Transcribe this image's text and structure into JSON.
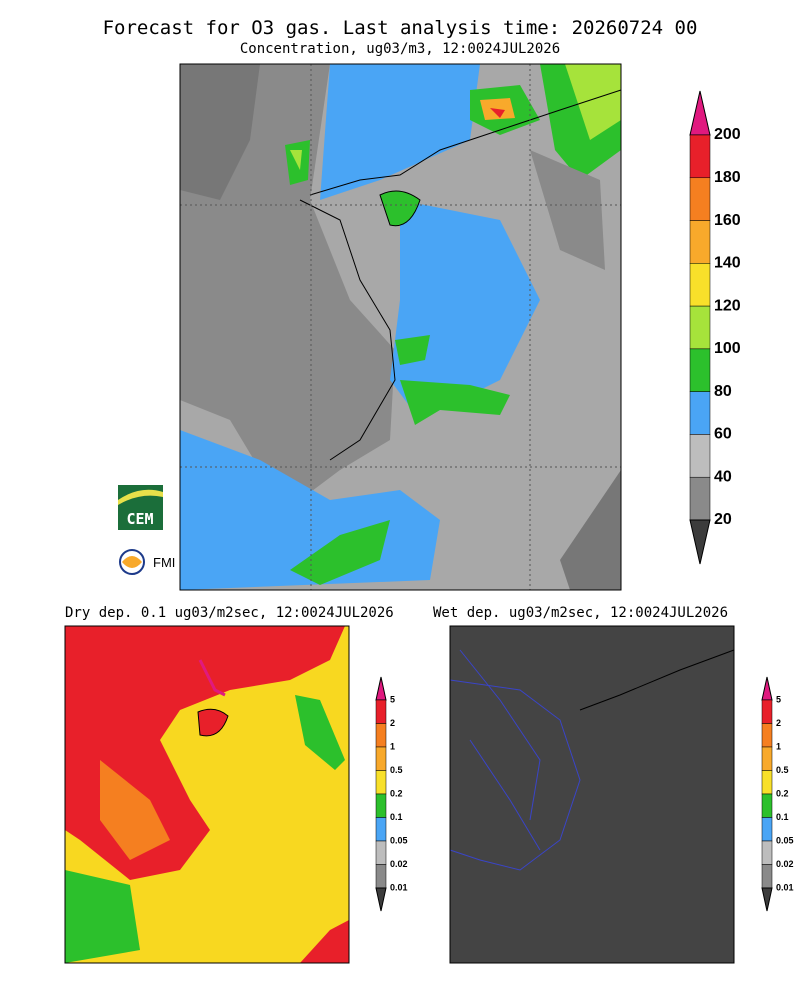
{
  "title": "Forecast for O3 gas. Last analysis time: 20260724 00",
  "main": {
    "subtitle": "Concentration, ug03/m3, 12:0024JUL2026",
    "colorbar": {
      "labels": [
        "200",
        "180",
        "160",
        "140",
        "120",
        "100",
        "80",
        "60",
        "40",
        "20"
      ],
      "colors": [
        "#e0197f",
        "#e8202a",
        "#f57f20",
        "#f8a92b",
        "#f8e02a",
        "#a6e33b",
        "#2cc02c",
        "#4aa5f5",
        "#bdbdbd",
        "#8a8a8a",
        "#3c3c3c"
      ]
    }
  },
  "panels": [
    {
      "title": "Dry dep. 0.1 ug03/m2sec, 12:0024JUL2026",
      "colorbar": {
        "labels": [
          "5",
          "2",
          "1",
          "0.5",
          "0.2",
          "0.1",
          "0.05",
          "0.02",
          "0.01"
        ],
        "colors": [
          "#e0197f",
          "#e8202a",
          "#f57f20",
          "#f8a92b",
          "#f8e02a",
          "#2cc02c",
          "#4aa5f5",
          "#bdbdbd",
          "#8a8a8a",
          "#3c3c3c"
        ]
      }
    },
    {
      "title": "Wet dep. ug03/m2sec, 12:0024JUL2026",
      "colorbar": {
        "labels": [
          "5",
          "2",
          "1",
          "0.5",
          "0.2",
          "0.1",
          "0.05",
          "0.02",
          "0.01"
        ],
        "colors": [
          "#e0197f",
          "#e8202a",
          "#f57f20",
          "#f8a92b",
          "#f8e02a",
          "#2cc02c",
          "#4aa5f5",
          "#bdbdbd",
          "#8a8a8a",
          "#3c3c3c"
        ]
      }
    }
  ],
  "logos": [
    "CEM",
    "FMI"
  ]
}
